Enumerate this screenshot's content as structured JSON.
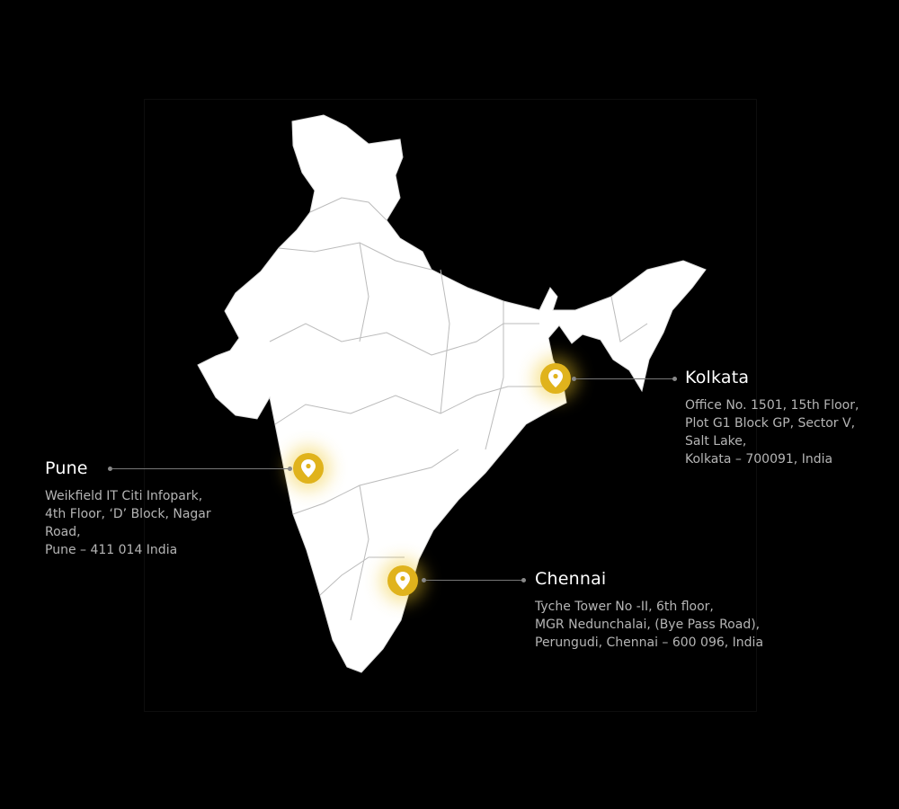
{
  "colors": {
    "background": "#000000",
    "land": "#ffffff",
    "pin": "#e0b31c",
    "borders": "#b8b8b8"
  },
  "offices": [
    {
      "city": "Kolkata",
      "address": "Office No. 1501, 15th Floor,\nPlot G1 Block GP, Sector V,\nSalt Lake,\nKolkata – 700091, India",
      "icon": "map-pin-icon"
    },
    {
      "city": "Pune",
      "address": "Weikfield IT Citi Infopark,\n4th Floor, ‘D’ Block, Nagar\nRoad,\nPune – 411 014 India",
      "icon": "map-pin-icon"
    },
    {
      "city": "Chennai",
      "address": "Tyche Tower No -II, 6th floor,\nMGR Nedunchalai, (Bye Pass Road),\nPerungudi, Chennai – 600 096, India",
      "icon": "map-pin-icon"
    }
  ]
}
